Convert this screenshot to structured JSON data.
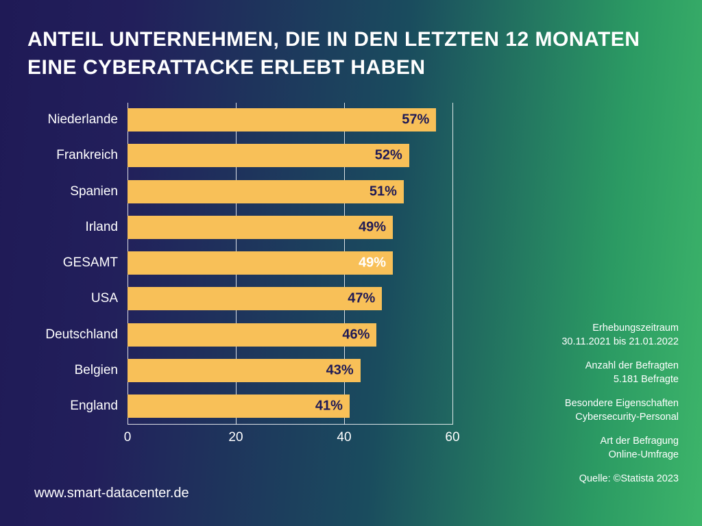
{
  "title": "ANTEIL UNTERNEHMEN, DIE IN DEN LETZTEN 12 MONATEN EINE CYBERATTACKE ERLEBT HABEN",
  "website": "www.smart-datacenter.de",
  "chart": {
    "type": "bar-horizontal",
    "xlim": [
      0,
      60
    ],
    "xticks": [
      0,
      20,
      40,
      60
    ],
    "grid_color": "rgba(255,255,255,0.85)",
    "bar_color": "#f8c058",
    "value_color_default": "#1f1a56",
    "value_suffix": "%",
    "label_fontsize": 19,
    "value_fontsize": 20,
    "categories": [
      {
        "label": "Niederlande",
        "value": 57,
        "value_color": "#1f1a56"
      },
      {
        "label": "Frankreich",
        "value": 52,
        "value_color": "#1f1a56"
      },
      {
        "label": "Spanien",
        "value": 51,
        "value_color": "#1f1a56"
      },
      {
        "label": "Irland",
        "value": 49,
        "value_color": "#1f1a56"
      },
      {
        "label": "GESAMT",
        "value": 49,
        "value_color": "#ffffff"
      },
      {
        "label": "USA",
        "value": 47,
        "value_color": "#1f1a56"
      },
      {
        "label": "Deutschland",
        "value": 46,
        "value_color": "#1f1a56"
      },
      {
        "label": "Belgien",
        "value": 43,
        "value_color": "#1f1a56"
      },
      {
        "label": "England",
        "value": 41,
        "value_color": "#1f1a56"
      }
    ]
  },
  "meta": [
    {
      "label": "Erhebungszeitraum",
      "value": "30.11.2021 bis 21.01.2022"
    },
    {
      "label": "Anzahl der Befragten",
      "value": "5.181 Befragte"
    },
    {
      "label": "Besondere Eigenschaften",
      "value": "Cybersecurity-Personal"
    },
    {
      "label": "Art der Befragung",
      "value": "Online-Umfrage"
    }
  ],
  "source": "Quelle: ©Statista 2023"
}
